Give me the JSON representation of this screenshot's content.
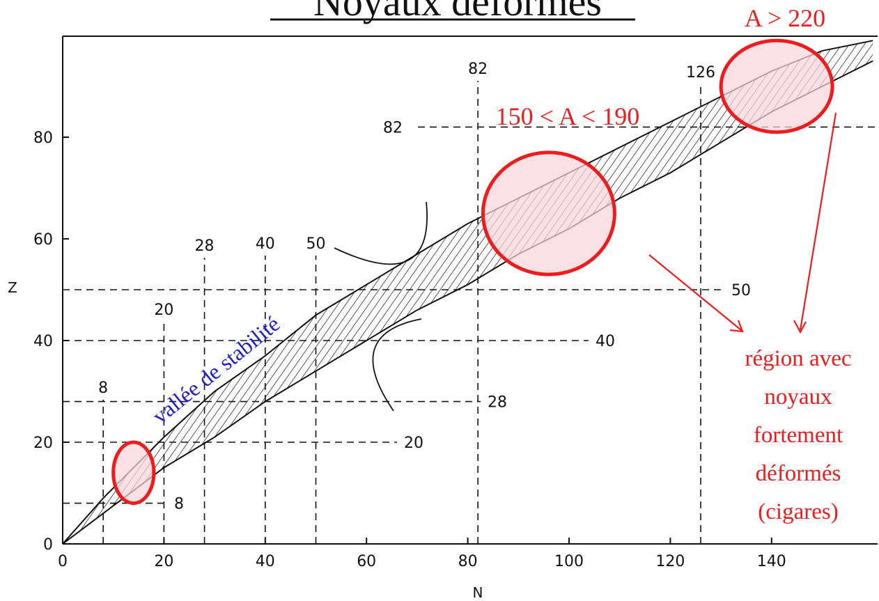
{
  "chart_data": {
    "type": "area",
    "title": "Noyaux déformés",
    "xlabel": "N",
    "ylabel": "Z",
    "xlim": [
      0,
      160
    ],
    "ylim": [
      0,
      100
    ],
    "x_ticks": [
      "0",
      "20",
      "40",
      "60",
      "80",
      "100",
      "120",
      "140"
    ],
    "y_ticks": [
      "0",
      "20",
      "40",
      "60",
      "80"
    ],
    "magic_numbers_N": [
      {
        "label": "8",
        "value": 8
      },
      {
        "label": "20",
        "value": 20
      },
      {
        "label": "28",
        "value": 28
      },
      {
        "label": "40",
        "value": 40
      },
      {
        "label": "50",
        "value": 50
      },
      {
        "label": "82",
        "value": 82
      },
      {
        "label": "126",
        "value": 126
      }
    ],
    "magic_numbers_Z": [
      {
        "label": "8",
        "value": 8
      },
      {
        "label": "20",
        "value": 20
      },
      {
        "label": "28",
        "value": 28
      },
      {
        "label": "40",
        "value": 40
      },
      {
        "label": "50",
        "value": 50
      },
      {
        "label": "82",
        "value": 82
      }
    ],
    "band": {
      "name": "vallée de stabilité",
      "upper": [
        [
          0,
          0
        ],
        [
          8,
          9
        ],
        [
          16,
          17
        ],
        [
          20,
          21
        ],
        [
          30,
          30
        ],
        [
          40,
          37
        ],
        [
          50,
          45
        ],
        [
          60,
          51
        ],
        [
          70,
          57
        ],
        [
          80,
          63
        ],
        [
          90,
          68
        ],
        [
          100,
          73
        ],
        [
          110,
          78
        ],
        [
          120,
          83
        ],
        [
          130,
          88
        ],
        [
          140,
          93
        ],
        [
          150,
          97
        ],
        [
          160,
          99
        ]
      ],
      "lower": [
        [
          0,
          0
        ],
        [
          8,
          6
        ],
        [
          16,
          12
        ],
        [
          20,
          15
        ],
        [
          30,
          21
        ],
        [
          40,
          28
        ],
        [
          50,
          34
        ],
        [
          60,
          40
        ],
        [
          70,
          46
        ],
        [
          80,
          51
        ],
        [
          90,
          57
        ],
        [
          100,
          62
        ],
        [
          110,
          68
        ],
        [
          120,
          73
        ],
        [
          130,
          79
        ],
        [
          140,
          85
        ],
        [
          150,
          90
        ],
        [
          160,
          95
        ]
      ]
    },
    "deformed_regions": [
      {
        "label": "",
        "center": [
          14,
          14
        ],
        "radius_N": 4,
        "radius_Z": 6
      },
      {
        "label": "150 < A < 190",
        "center": [
          96,
          65
        ],
        "radius_N": 13,
        "radius_Z": 12
      },
      {
        "label": "A > 220",
        "center": [
          141,
          90
        ],
        "radius_N": 11,
        "radius_Z": 9
      }
    ],
    "annotation": [
      "région avec",
      "noyaux",
      "fortement",
      "déformés",
      "(cigares)"
    ],
    "colors": {
      "axis": "#111111",
      "band": "#111111",
      "highlight": "#ee1c1c",
      "highlight_fill": "#f9d5da",
      "valley_label": "#2020cc"
    }
  }
}
